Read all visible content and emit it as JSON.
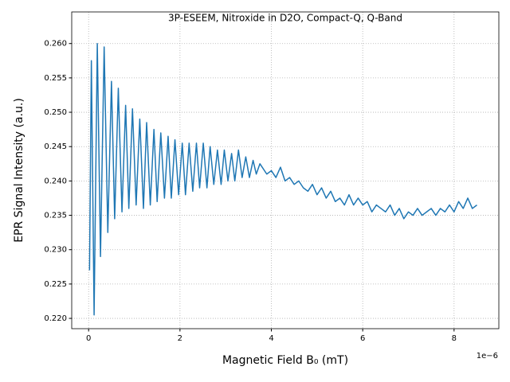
{
  "chart_data": {
    "type": "line",
    "title": "3P-ESEEM, Nitroxide in D2O, Compact-Q, Q-Band",
    "xlabel": "Magnetic Field B₀ (mT)",
    "ylabel": "EPR Signal Intensity (a.u.)",
    "x_offset_label": "1e−6",
    "grid": true,
    "xlim": [
      -0.37,
      8.98
    ],
    "ylim": [
      0.2185,
      0.2646
    ],
    "xticks": [
      0,
      2,
      4,
      6,
      8
    ],
    "yticks": [
      {
        "value": 0.22,
        "label": "0.220"
      },
      {
        "value": 0.225,
        "label": "0.225"
      },
      {
        "value": 0.23,
        "label": "0.230"
      },
      {
        "value": 0.235,
        "label": "0.235"
      },
      {
        "value": 0.24,
        "label": "0.240"
      },
      {
        "value": 0.245,
        "label": "0.245"
      },
      {
        "value": 0.25,
        "label": "0.250"
      },
      {
        "value": 0.255,
        "label": "0.255"
      },
      {
        "value": 0.26,
        "label": "0.260"
      }
    ],
    "series": [
      {
        "color": "#1f77b4",
        "x": [
          0.02,
          0.06,
          0.12,
          0.19,
          0.26,
          0.34,
          0.42,
          0.5,
          0.57,
          0.65,
          0.73,
          0.81,
          0.88,
          0.96,
          1.04,
          1.12,
          1.2,
          1.27,
          1.35,
          1.43,
          1.5,
          1.58,
          1.66,
          1.74,
          1.81,
          1.89,
          1.97,
          2.05,
          2.12,
          2.2,
          2.28,
          2.36,
          2.43,
          2.51,
          2.59,
          2.66,
          2.74,
          2.82,
          2.9,
          2.97,
          3.05,
          3.13,
          3.2,
          3.28,
          3.36,
          3.44,
          3.52,
          3.6,
          3.67,
          3.75,
          3.9,
          4.0,
          4.1,
          4.2,
          4.3,
          4.4,
          4.5,
          4.6,
          4.7,
          4.8,
          4.9,
          5.0,
          5.1,
          5.2,
          5.3,
          5.4,
          5.5,
          5.6,
          5.7,
          5.8,
          5.9,
          6.0,
          6.1,
          6.2,
          6.3,
          6.4,
          6.5,
          6.6,
          6.7,
          6.8,
          6.9,
          7.0,
          7.1,
          7.2,
          7.3,
          7.4,
          7.5,
          7.6,
          7.7,
          7.8,
          7.9,
          8.0,
          8.1,
          8.2,
          8.3,
          8.4,
          8.5
        ],
        "values": [
          0.227,
          0.2575,
          0.2205,
          0.26,
          0.229,
          0.2595,
          0.2325,
          0.2545,
          0.2345,
          0.2535,
          0.2355,
          0.251,
          0.236,
          0.2505,
          0.2365,
          0.249,
          0.236,
          0.2485,
          0.2365,
          0.2475,
          0.237,
          0.247,
          0.2375,
          0.2465,
          0.2375,
          0.246,
          0.238,
          0.2455,
          0.238,
          0.2455,
          0.2385,
          0.2455,
          0.239,
          0.2455,
          0.239,
          0.245,
          0.2395,
          0.2445,
          0.2395,
          0.2445,
          0.24,
          0.244,
          0.24,
          0.2445,
          0.2405,
          0.2435,
          0.2405,
          0.243,
          0.241,
          0.2425,
          0.241,
          0.2415,
          0.2405,
          0.242,
          0.24,
          0.2405,
          0.2395,
          0.24,
          0.239,
          0.2385,
          0.2395,
          0.238,
          0.239,
          0.2375,
          0.2385,
          0.237,
          0.2375,
          0.2365,
          0.238,
          0.2365,
          0.2375,
          0.2365,
          0.237,
          0.2355,
          0.2365,
          0.236,
          0.2355,
          0.2365,
          0.235,
          0.236,
          0.2345,
          0.2355,
          0.235,
          0.236,
          0.235,
          0.2355,
          0.236,
          0.235,
          0.236,
          0.2355,
          0.2365,
          0.2355,
          0.237,
          0.236,
          0.2375,
          0.236,
          0.2365
        ]
      }
    ]
  }
}
